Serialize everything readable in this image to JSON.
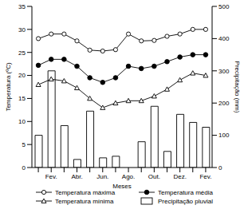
{
  "chart_data": {
    "type": "line",
    "x_label": "Meses",
    "y_label": "Temperatura (ºC)",
    "y2_label": "Precipitação (mm)",
    "categories": [
      null,
      "Fev.",
      null,
      "Abr.",
      null,
      "Jun.",
      null,
      "Ago.",
      null,
      "Out.",
      null,
      "Dez.",
      null,
      "Fev."
    ],
    "ylim": [
      0,
      35
    ],
    "yticks": [
      0,
      5,
      10,
      15,
      20,
      25,
      30,
      35
    ],
    "y2lim": [
      0,
      500
    ],
    "y2ticks": [
      0,
      100,
      200,
      300,
      400,
      500
    ],
    "grid": false,
    "legend": "bottom",
    "series": [
      {
        "name": "Temperatura máxima",
        "type": "line",
        "color": "#000000",
        "marker": "open_circle",
        "values": [
          28,
          29,
          29,
          27.5,
          25.5,
          25.3,
          25.6,
          29,
          27.5,
          27.6,
          28.5,
          29,
          30,
          30
        ]
      },
      {
        "name": "Temperatura média",
        "type": "line",
        "color": "#000000",
        "marker": "circle",
        "values": [
          22.2,
          23.5,
          23.5,
          22,
          19.5,
          18.5,
          19.5,
          22,
          21.5,
          22,
          23,
          24,
          24.5,
          24.5
        ]
      },
      {
        "name": "Temperatura mínima",
        "type": "line",
        "color": "#000000",
        "marker": "open_triangle",
        "values": [
          18,
          19.2,
          18.8,
          17.3,
          15,
          13,
          14,
          14.5,
          14.5,
          15.5,
          17,
          19,
          20.5,
          20
        ]
      },
      {
        "name": "Precipitação pluvial",
        "type": "bar",
        "axis": "y2",
        "color": "#ffffff",
        "values": [
          100,
          300,
          130,
          25,
          175,
          30,
          35,
          0,
          80,
          190,
          50,
          165,
          140,
          125
        ]
      }
    ]
  }
}
